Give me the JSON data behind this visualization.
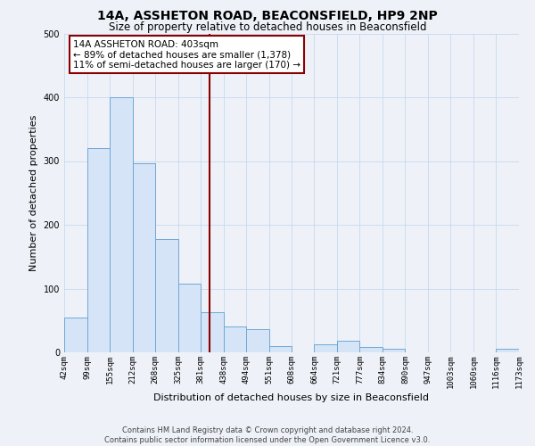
{
  "title": "14A, ASSHETON ROAD, BEACONSFIELD, HP9 2NP",
  "subtitle": "Size of property relative to detached houses in Beaconsfield",
  "xlabel": "Distribution of detached houses by size in Beaconsfield",
  "ylabel": "Number of detached properties",
  "bin_edges": [
    42,
    99,
    155,
    212,
    268,
    325,
    381,
    438,
    494,
    551,
    608,
    664,
    721,
    777,
    834,
    890,
    947,
    1003,
    1060,
    1116,
    1173
  ],
  "bin_counts": [
    55,
    320,
    400,
    297,
    178,
    108,
    63,
    40,
    37,
    10,
    0,
    13,
    18,
    9,
    5,
    0,
    0,
    0,
    0,
    5
  ],
  "bar_facecolor": "#d6e4f7",
  "bar_edgecolor": "#6fa8d4",
  "vline_x": 403,
  "vline_color": "#8b0000",
  "annotation_title": "14A ASSHETON ROAD: 403sqm",
  "annotation_line1": "← 89% of detached houses are smaller (1,378)",
  "annotation_line2": "11% of semi-detached houses are larger (170) →",
  "ylim": [
    0,
    500
  ],
  "tick_labels": [
    "42sqm",
    "99sqm",
    "155sqm",
    "212sqm",
    "268sqm",
    "325sqm",
    "381sqm",
    "438sqm",
    "494sqm",
    "551sqm",
    "608sqm",
    "664sqm",
    "721sqm",
    "777sqm",
    "834sqm",
    "890sqm",
    "947sqm",
    "1003sqm",
    "1060sqm",
    "1116sqm",
    "1173sqm"
  ],
  "footer1": "Contains HM Land Registry data © Crown copyright and database right 2024.",
  "footer2": "Contains public sector information licensed under the Open Government Licence v3.0.",
  "background_color": "#eef2f8",
  "grid_color": "#c8d8ee",
  "title_fontsize": 10,
  "subtitle_fontsize": 8.5,
  "label_fontsize": 8,
  "tick_fontsize": 6.5,
  "footer_fontsize": 6,
  "annotation_fontsize": 7.5
}
